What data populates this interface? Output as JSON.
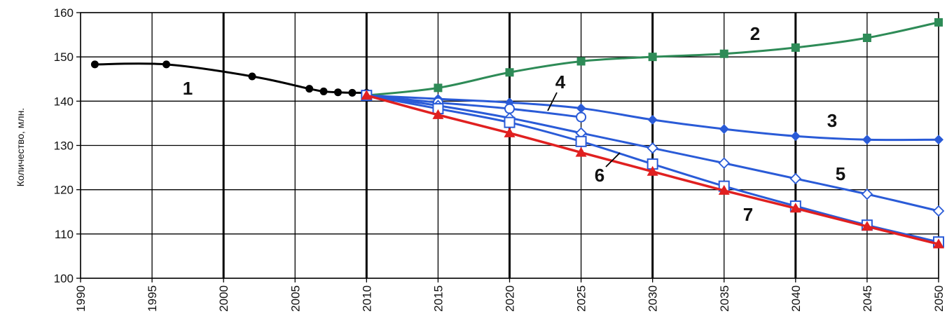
{
  "chart_data": {
    "type": "line",
    "ylabel": "Количество, млн.",
    "xlim": [
      1990,
      2050
    ],
    "ylim": [
      100,
      160
    ],
    "x_ticks": [
      1990,
      1995,
      2000,
      2005,
      2010,
      2015,
      2020,
      2025,
      2030,
      2035,
      2040,
      2045,
      2050
    ],
    "y_ticks": [
      100,
      110,
      120,
      130,
      140,
      150,
      160
    ],
    "grid": true,
    "series": [
      {
        "name": "1",
        "color": "#000000",
        "marker": "filled-circle",
        "x": [
          1991,
          1996,
          2002,
          2006,
          2007,
          2008,
          2009,
          2010
        ],
        "y": [
          148.3,
          148.3,
          145.6,
          142.8,
          142.2,
          142.0,
          141.9,
          141.9
        ]
      },
      {
        "name": "2",
        "color": "#2e8b57",
        "marker": "filled-square",
        "x": [
          2010,
          2015,
          2020,
          2025,
          2030,
          2035,
          2040,
          2045,
          2050
        ],
        "y": [
          141.3,
          143.0,
          146.5,
          149.0,
          150.0,
          150.7,
          152.1,
          154.3,
          157.8
        ]
      },
      {
        "name": "3",
        "color": "#2a5bd7",
        "marker": "filled-diamond",
        "x": [
          2010,
          2015,
          2020,
          2025,
          2030,
          2035,
          2040,
          2045,
          2050
        ],
        "y": [
          141.3,
          140.5,
          139.7,
          138.4,
          135.8,
          133.7,
          132.1,
          131.3,
          131.3
        ]
      },
      {
        "name": "4",
        "color": "#2a5bd7",
        "marker": "open-circle",
        "x": [
          2010,
          2015,
          2020,
          2025
        ],
        "y": [
          141.3,
          139.7,
          138.3,
          136.4
        ]
      },
      {
        "name": "5",
        "color": "#2a5bd7",
        "marker": "open-diamond",
        "x": [
          2010,
          2015,
          2020,
          2025,
          2030,
          2035,
          2040,
          2045,
          2050
        ],
        "y": [
          141.3,
          139.0,
          136.2,
          132.8,
          129.4,
          126.0,
          122.5,
          119.0,
          115.2
        ]
      },
      {
        "name": "6",
        "color": "#2a5bd7",
        "marker": "open-square",
        "x": [
          2010,
          2015,
          2020,
          2025,
          2030,
          2035,
          2040,
          2045,
          2050
        ],
        "y": [
          141.3,
          138.3,
          135.2,
          130.9,
          125.8,
          120.8,
          116.3,
          112.0,
          108.2
        ]
      },
      {
        "name": "7",
        "color": "#e02020",
        "marker": "filled-triangle",
        "x": [
          2010,
          2015,
          2020,
          2025,
          2030,
          2035,
          2040,
          2045,
          2050
        ],
        "y": [
          141.3,
          136.9,
          132.8,
          128.4,
          124.1,
          119.8,
          115.8,
          111.7,
          107.7
        ]
      }
    ]
  }
}
